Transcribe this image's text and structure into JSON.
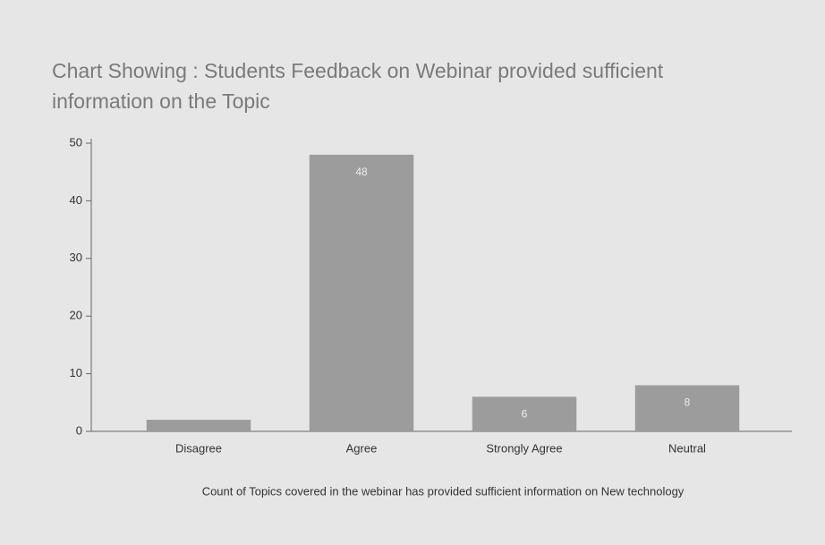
{
  "chart_data": {
    "type": "bar",
    "title": "Chart Showing : Students Feedback on Webinar provided sufficient information on the Topic",
    "x_label": "Count of Topics covered in the webinar has provided sufficient information on New technology",
    "categories": [
      "Disagree",
      "Agree",
      "Strongly Agree",
      "Neutral"
    ],
    "values": [
      2,
      48,
      6,
      8
    ],
    "color": "#9c9c9c",
    "ylim": [
      0,
      50
    ],
    "yticks": [
      0,
      10,
      20,
      30,
      40,
      50
    ],
    "grid": false
  }
}
